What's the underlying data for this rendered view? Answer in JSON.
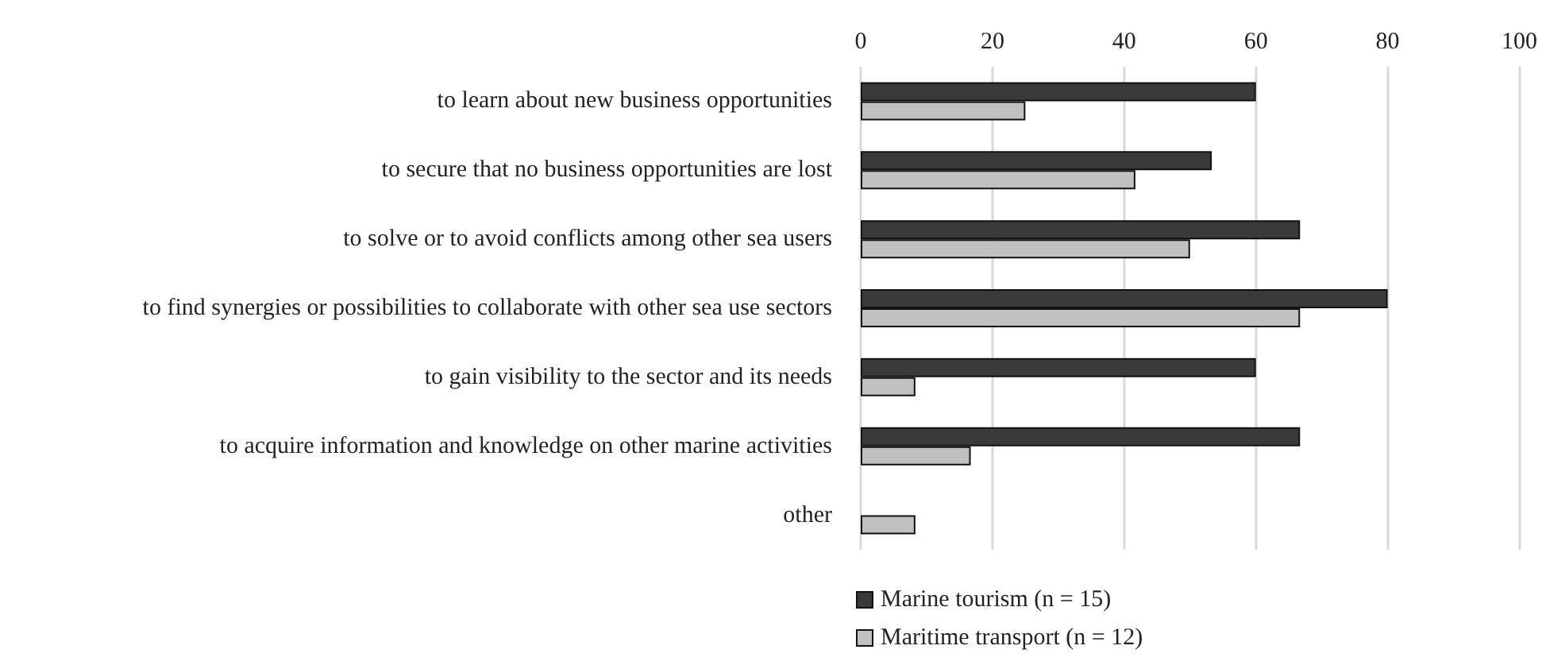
{
  "chart_data": {
    "type": "bar",
    "orientation": "horizontal",
    "categories": [
      "to learn about new business opportunities",
      "to secure that no business opportunities are lost",
      "to solve or to avoid conflicts among other sea users",
      "to find synergies or possibilities to collaborate with other sea use sectors",
      "to gain visibility to the sector and its needs",
      "to acquire information and knowledge on other marine activities",
      "other"
    ],
    "series": [
      {
        "name": "Marine tourism (n = 15)",
        "color": "#3a3a3a",
        "values": [
          60,
          53.3,
          66.7,
          80,
          60,
          66.7,
          null
        ]
      },
      {
        "name": "Maritime transport (n = 12)",
        "color": "#c0c0c0",
        "values": [
          25,
          41.7,
          50,
          66.7,
          8.3,
          16.7,
          8.3
        ]
      }
    ],
    "xlim": [
      0,
      100
    ],
    "xticks": [
      0,
      20,
      40,
      60,
      80,
      100
    ],
    "grid": "x",
    "legend": "bottom"
  }
}
